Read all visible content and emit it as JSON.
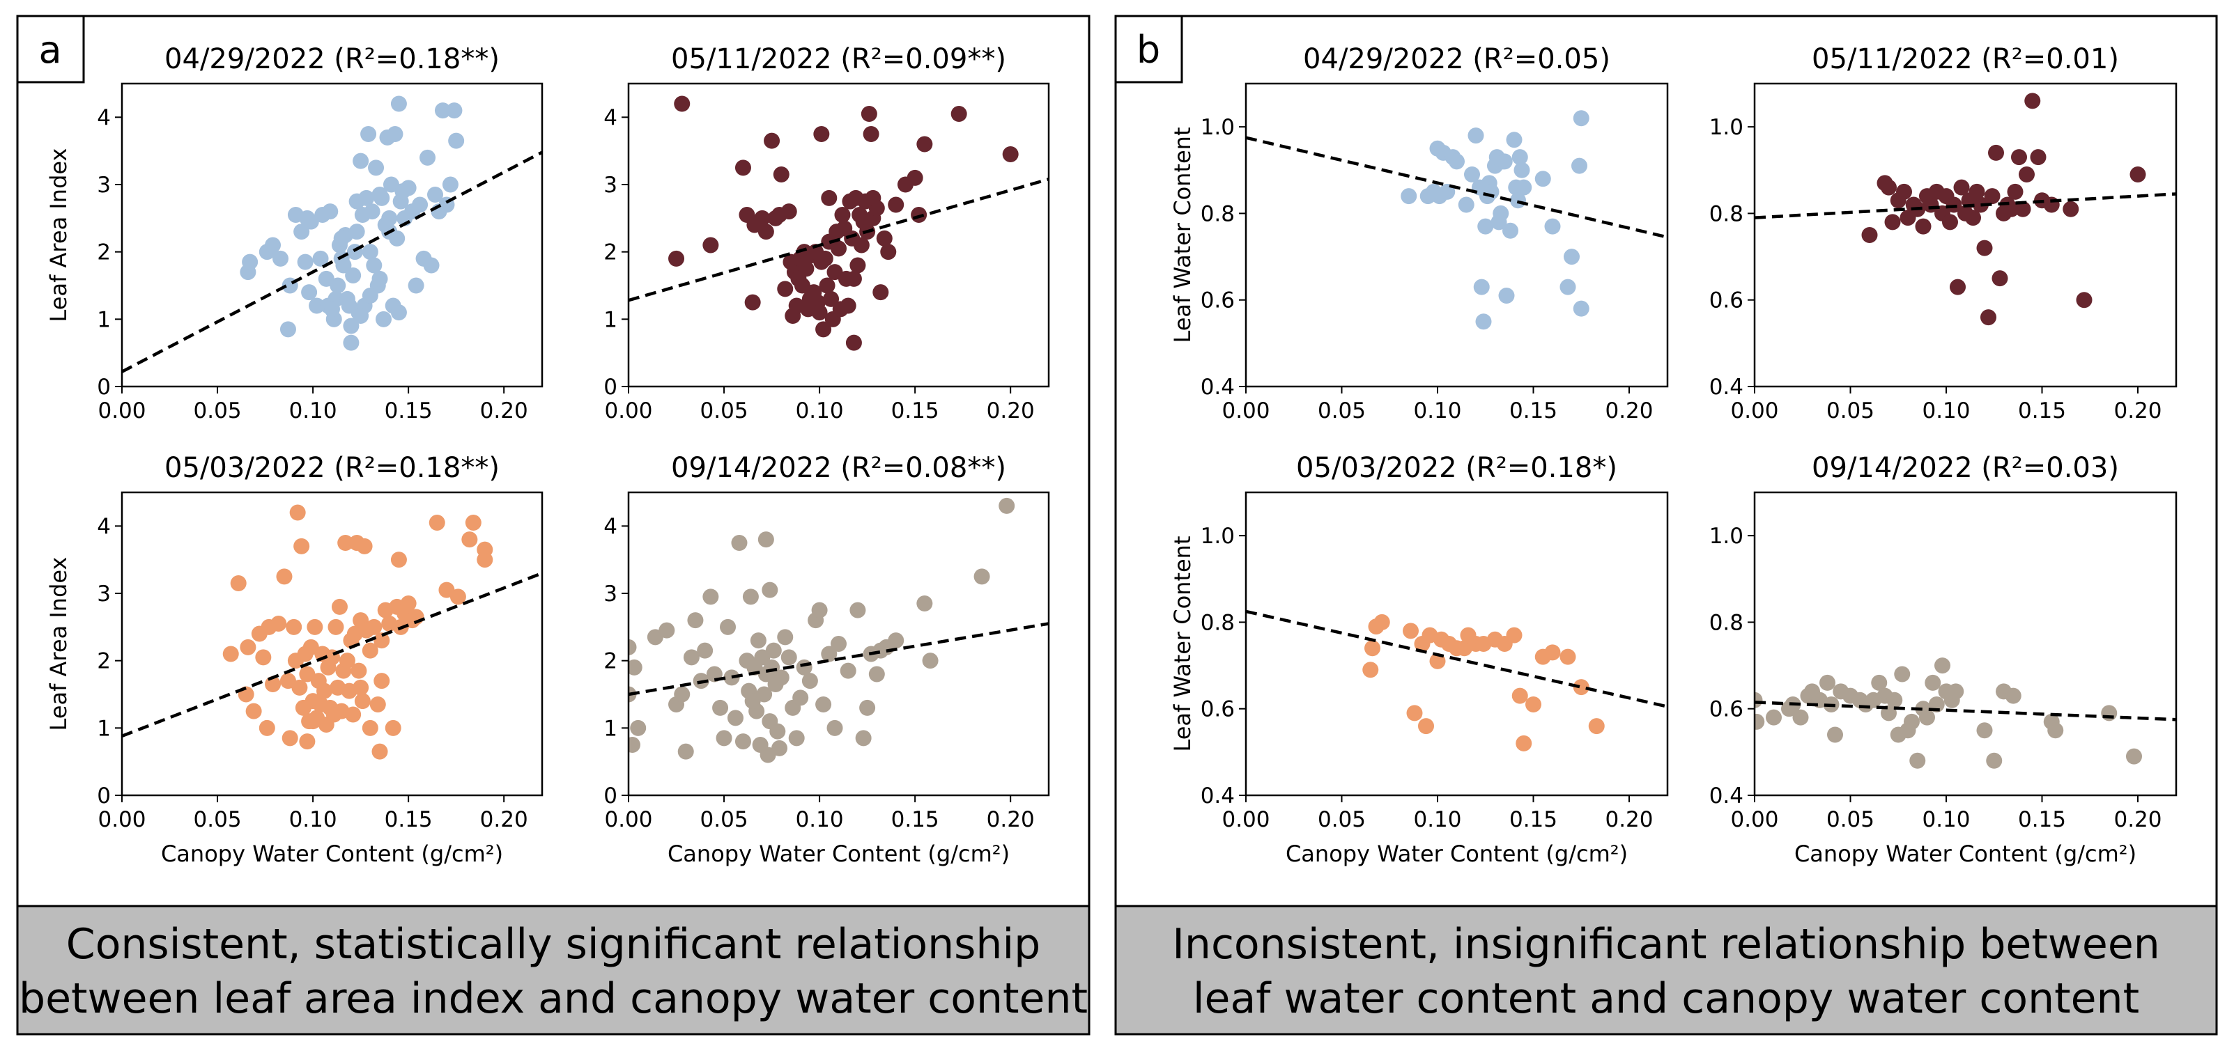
{
  "panels": [
    {
      "tag": "a",
      "caption_lines": [
        "Consistent, statistically significant relationship",
        "between leaf area index and canopy water content"
      ]
    },
    {
      "tag": "b",
      "caption_lines": [
        "Inconsistent, insignificant relationship between",
        "leaf water content and canopy water content"
      ]
    }
  ],
  "chart_data": [
    {
      "type": "scatter",
      "panel": "a",
      "title": "04/29/2022 (R²=0.18**)",
      "xlabel": "",
      "ylabel": "Leaf Area Index",
      "xlim": [
        0,
        0.22
      ],
      "ylim": [
        0,
        4.5
      ],
      "xticks": [
        "0.00",
        "0.05",
        "0.10",
        "0.15",
        "0.20"
      ],
      "yticks": [
        "0",
        "1",
        "2",
        "3",
        "4"
      ],
      "color": "#a3bfdc",
      "fit_line": {
        "x": [
          0,
          0.22
        ],
        "y": [
          0.22,
          3.48
        ]
      },
      "x": [
        0.066,
        0.067,
        0.076,
        0.079,
        0.083,
        0.087,
        0.088,
        0.091,
        0.094,
        0.096,
        0.097,
        0.098,
        0.099,
        0.102,
        0.104,
        0.105,
        0.107,
        0.108,
        0.109,
        0.111,
        0.112,
        0.113,
        0.114,
        0.115,
        0.116,
        0.117,
        0.118,
        0.119,
        0.12,
        0.121,
        0.122,
        0.123,
        0.123,
        0.124,
        0.125,
        0.126,
        0.127,
        0.128,
        0.129,
        0.13,
        0.131,
        0.132,
        0.133,
        0.134,
        0.135,
        0.136,
        0.137,
        0.138,
        0.139,
        0.14,
        0.141,
        0.142,
        0.143,
        0.144,
        0.145,
        0.146,
        0.147,
        0.148,
        0.15,
        0.152,
        0.154,
        0.156,
        0.158,
        0.16,
        0.162,
        0.164,
        0.166,
        0.168,
        0.17,
        0.172,
        0.174,
        0.175,
        0.12,
        0.125,
        0.13,
        0.135,
        0.14,
        0.145,
        0.11,
        0.115
      ],
      "y": [
        1.7,
        1.85,
        2.0,
        2.1,
        1.9,
        0.85,
        1.5,
        2.55,
        2.3,
        1.85,
        2.5,
        1.4,
        2.45,
        1.2,
        1.9,
        2.55,
        1.6,
        1.2,
        2.6,
        1.0,
        1.3,
        1.5,
        2.1,
        1.9,
        1.8,
        2.25,
        1.3,
        1.2,
        0.9,
        1.65,
        2.0,
        2.75,
        2.3,
        1.1,
        3.35,
        2.55,
        1.2,
        2.8,
        3.75,
        2.0,
        2.6,
        1.8,
        3.25,
        1.5,
        2.85,
        2.8,
        1.0,
        2.4,
        3.7,
        2.5,
        3.0,
        1.2,
        3.75,
        2.2,
        4.2,
        2.75,
        2.9,
        2.5,
        2.95,
        2.6,
        1.5,
        2.7,
        1.9,
        3.4,
        1.8,
        2.85,
        2.6,
        4.1,
        2.7,
        3.0,
        4.1,
        3.65,
        0.65,
        1.05,
        1.35,
        1.6,
        2.3,
        1.1,
        1.15,
        2.2
      ]
    },
    {
      "type": "scatter",
      "panel": "a",
      "title": "05/11/2022 (R²=0.09**)",
      "xlabel": "",
      "ylabel": "",
      "xlim": [
        0,
        0.22
      ],
      "ylim": [
        0,
        4.5
      ],
      "xticks": [
        "0.00",
        "0.05",
        "0.10",
        "0.15",
        "0.20"
      ],
      "yticks": [
        "0",
        "1",
        "2",
        "3",
        "4"
      ],
      "color": "#66262e",
      "fit_line": {
        "x": [
          0,
          0.22
        ],
        "y": [
          1.28,
          3.08
        ]
      },
      "x": [
        0.028,
        0.025,
        0.043,
        0.06,
        0.062,
        0.065,
        0.066,
        0.07,
        0.072,
        0.075,
        0.077,
        0.079,
        0.08,
        0.082,
        0.084,
        0.085,
        0.086,
        0.087,
        0.088,
        0.089,
        0.09,
        0.091,
        0.092,
        0.093,
        0.094,
        0.095,
        0.096,
        0.097,
        0.098,
        0.099,
        0.1,
        0.101,
        0.102,
        0.103,
        0.104,
        0.105,
        0.106,
        0.107,
        0.108,
        0.109,
        0.11,
        0.111,
        0.112,
        0.113,
        0.114,
        0.115,
        0.116,
        0.117,
        0.118,
        0.119,
        0.12,
        0.121,
        0.122,
        0.123,
        0.124,
        0.125,
        0.126,
        0.127,
        0.128,
        0.13,
        0.132,
        0.134,
        0.136,
        0.14,
        0.145,
        0.15,
        0.152,
        0.155,
        0.173,
        0.2,
        0.101,
        0.105,
        0.128,
        0.118
      ],
      "y": [
        4.2,
        1.9,
        2.1,
        3.25,
        2.55,
        1.25,
        2.4,
        2.5,
        2.3,
        3.65,
        2.5,
        2.55,
        3.15,
        1.45,
        2.6,
        1.85,
        1.05,
        1.7,
        1.2,
        1.6,
        1.9,
        1.5,
        2.0,
        1.75,
        1.15,
        1.3,
        1.95,
        1.4,
        2.0,
        1.25,
        1.1,
        3.75,
        0.85,
        1.9,
        1.5,
        2.8,
        1.3,
        1.0,
        1.7,
        2.3,
        2.05,
        1.15,
        2.55,
        2.35,
        1.6,
        1.2,
        2.75,
        2.2,
        0.65,
        2.8,
        1.8,
        2.55,
        2.1,
        2.45,
        2.75,
        2.3,
        4.05,
        3.75,
        2.5,
        2.65,
        1.4,
        2.2,
        2.0,
        2.7,
        3.0,
        3.1,
        2.55,
        3.6,
        4.05,
        3.45,
        1.85,
        2.15,
        2.8,
        1.6
      ]
    },
    {
      "type": "scatter",
      "panel": "a",
      "title": "05/03/2022 (R²=0.18**)",
      "xlabel": "Canopy Water Content (g/cm²)",
      "ylabel": "Leaf Area Index",
      "xlim": [
        0,
        0.22
      ],
      "ylim": [
        0,
        4.5
      ],
      "xticks": [
        "0.00",
        "0.05",
        "0.10",
        "0.15",
        "0.20"
      ],
      "yticks": [
        "0",
        "1",
        "2",
        "3",
        "4"
      ],
      "color": "#ee9b6a",
      "fit_line": {
        "x": [
          0,
          0.22
        ],
        "y": [
          0.88,
          3.3
        ]
      },
      "x": [
        0.057,
        0.061,
        0.065,
        0.066,
        0.069,
        0.072,
        0.074,
        0.076,
        0.077,
        0.079,
        0.082,
        0.085,
        0.087,
        0.088,
        0.09,
        0.091,
        0.092,
        0.093,
        0.094,
        0.095,
        0.096,
        0.097,
        0.098,
        0.099,
        0.1,
        0.101,
        0.102,
        0.103,
        0.104,
        0.105,
        0.106,
        0.107,
        0.108,
        0.109,
        0.11,
        0.111,
        0.112,
        0.113,
        0.114,
        0.115,
        0.116,
        0.117,
        0.118,
        0.119,
        0.12,
        0.121,
        0.122,
        0.123,
        0.124,
        0.125,
        0.126,
        0.127,
        0.128,
        0.13,
        0.132,
        0.134,
        0.135,
        0.136,
        0.138,
        0.14,
        0.142,
        0.144,
        0.145,
        0.146,
        0.148,
        0.15,
        0.152,
        0.154,
        0.165,
        0.17,
        0.176,
        0.182,
        0.184,
        0.19,
        0.19,
        0.097,
        0.1,
        0.125,
        0.13,
        0.136
      ],
      "y": [
        2.1,
        3.15,
        1.5,
        2.2,
        1.25,
        2.4,
        2.05,
        1.0,
        2.5,
        1.65,
        2.55,
        3.25,
        1.7,
        0.85,
        2.5,
        2.0,
        4.2,
        1.6,
        3.7,
        1.3,
        2.1,
        1.8,
        1.1,
        2.2,
        1.4,
        2.5,
        1.15,
        1.7,
        1.35,
        2.1,
        1.55,
        1.05,
        1.9,
        1.3,
        2.05,
        1.2,
        2.5,
        1.6,
        2.8,
        1.25,
        1.85,
        3.75,
        2.0,
        1.55,
        2.3,
        1.2,
        2.4,
        3.75,
        1.85,
        2.6,
        1.4,
        3.7,
        2.45,
        2.15,
        2.5,
        1.35,
        0.65,
        2.3,
        2.75,
        2.55,
        1.0,
        2.8,
        3.5,
        2.5,
        2.7,
        2.85,
        2.6,
        2.65,
        4.05,
        3.05,
        2.95,
        3.8,
        4.05,
        3.65,
        3.5,
        0.8,
        1.1,
        1.6,
        1.0,
        1.7
      ]
    },
    {
      "type": "scatter",
      "panel": "a",
      "title": "09/14/2022 (R²=0.08**)",
      "xlabel": "Canopy Water Content (g/cm²)",
      "ylabel": "",
      "xlim": [
        0,
        0.22
      ],
      "ylim": [
        0,
        4.5
      ],
      "xticks": [
        "0.00",
        "0.05",
        "0.10",
        "0.15",
        "0.20"
      ],
      "yticks": [
        "0",
        "1",
        "2",
        "3",
        "4"
      ],
      "color": "#ada193",
      "fit_line": {
        "x": [
          0,
          0.22
        ],
        "y": [
          1.5,
          2.55
        ]
      },
      "x": [
        0.0,
        0.0,
        0.002,
        0.003,
        0.005,
        0.014,
        0.02,
        0.025,
        0.028,
        0.03,
        0.033,
        0.035,
        0.038,
        0.04,
        0.043,
        0.045,
        0.048,
        0.05,
        0.052,
        0.054,
        0.056,
        0.058,
        0.06,
        0.062,
        0.063,
        0.064,
        0.066,
        0.067,
        0.068,
        0.069,
        0.07,
        0.071,
        0.072,
        0.073,
        0.074,
        0.075,
        0.076,
        0.077,
        0.078,
        0.079,
        0.08,
        0.082,
        0.084,
        0.086,
        0.088,
        0.09,
        0.092,
        0.095,
        0.098,
        0.1,
        0.102,
        0.105,
        0.108,
        0.11,
        0.115,
        0.12,
        0.123,
        0.125,
        0.127,
        0.13,
        0.132,
        0.135,
        0.14,
        0.155,
        0.158,
        0.185,
        0.198,
        0.072,
        0.074,
        0.065
      ],
      "y": [
        2.2,
        1.5,
        0.75,
        1.9,
        1.0,
        2.35,
        2.45,
        1.35,
        1.5,
        0.65,
        2.05,
        2.6,
        1.7,
        2.15,
        2.95,
        1.8,
        1.3,
        0.85,
        2.5,
        1.75,
        1.15,
        3.75,
        0.8,
        2.0,
        1.55,
        2.95,
        1.9,
        1.25,
        2.3,
        0.75,
        2.05,
        1.5,
        3.8,
        0.6,
        3.05,
        1.9,
        2.15,
        1.65,
        0.95,
        0.7,
        1.75,
        2.35,
        2.05,
        1.3,
        0.85,
        1.45,
        1.9,
        1.7,
        2.6,
        2.75,
        1.35,
        2.1,
        1.0,
        2.25,
        1.85,
        2.75,
        0.85,
        1.3,
        2.1,
        1.8,
        2.15,
        2.2,
        2.3,
        2.85,
        2.0,
        3.25,
        4.3,
        1.8,
        1.1,
        1.4
      ]
    },
    {
      "type": "scatter",
      "panel": "b",
      "title": "04/29/2022 (R²=0.05)",
      "xlabel": "",
      "ylabel": "Leaf Water Content",
      "xlim": [
        0,
        0.22
      ],
      "ylim": [
        0.4,
        1.1
      ],
      "xticks": [
        "0.00",
        "0.05",
        "0.10",
        "0.15",
        "0.20"
      ],
      "yticks": [
        "0.4",
        "0.6",
        "0.8",
        "1.0"
      ],
      "color": "#a3bfdc",
      "fit_line": {
        "x": [
          0,
          0.22
        ],
        "y": [
          0.975,
          0.745
        ]
      },
      "x": [
        0.085,
        0.095,
        0.098,
        0.1,
        0.101,
        0.103,
        0.105,
        0.108,
        0.11,
        0.115,
        0.118,
        0.12,
        0.122,
        0.123,
        0.124,
        0.125,
        0.126,
        0.127,
        0.128,
        0.13,
        0.131,
        0.132,
        0.133,
        0.134,
        0.135,
        0.136,
        0.138,
        0.14,
        0.141,
        0.142,
        0.143,
        0.144,
        0.145,
        0.155,
        0.16,
        0.168,
        0.17,
        0.174,
        0.175,
        0.175
      ],
      "y": [
        0.84,
        0.84,
        0.85,
        0.95,
        0.84,
        0.94,
        0.85,
        0.93,
        0.92,
        0.82,
        0.89,
        0.98,
        0.86,
        0.63,
        0.55,
        0.77,
        0.84,
        0.87,
        0.85,
        0.91,
        0.93,
        0.78,
        0.8,
        0.92,
        0.92,
        0.61,
        0.76,
        0.97,
        0.86,
        0.83,
        0.93,
        0.9,
        0.86,
        0.88,
        0.77,
        0.63,
        0.7,
        0.91,
        1.02,
        0.58
      ]
    },
    {
      "type": "scatter",
      "panel": "b",
      "title": "05/11/2022 (R²=0.01)",
      "xlabel": "",
      "ylabel": "",
      "xlim": [
        0,
        0.22
      ],
      "ylim": [
        0.4,
        1.1
      ],
      "xticks": [
        "0.00",
        "0.05",
        "0.10",
        "0.15",
        "0.20"
      ],
      "yticks": [
        "0.4",
        "0.6",
        "0.8",
        "1.0"
      ],
      "color": "#66262e",
      "fit_line": {
        "x": [
          0,
          0.22
        ],
        "y": [
          0.79,
          0.845
        ]
      },
      "x": [
        0.06,
        0.068,
        0.07,
        0.072,
        0.075,
        0.078,
        0.08,
        0.083,
        0.085,
        0.088,
        0.09,
        0.092,
        0.095,
        0.098,
        0.1,
        0.102,
        0.104,
        0.106,
        0.108,
        0.11,
        0.112,
        0.114,
        0.116,
        0.118,
        0.12,
        0.122,
        0.124,
        0.126,
        0.128,
        0.13,
        0.132,
        0.134,
        0.136,
        0.138,
        0.14,
        0.142,
        0.145,
        0.148,
        0.15,
        0.155,
        0.165,
        0.172,
        0.2
      ],
      "y": [
        0.75,
        0.87,
        0.86,
        0.78,
        0.83,
        0.85,
        0.79,
        0.82,
        0.81,
        0.77,
        0.84,
        0.82,
        0.85,
        0.8,
        0.84,
        0.78,
        0.82,
        0.63,
        0.86,
        0.8,
        0.83,
        0.79,
        0.85,
        0.82,
        0.72,
        0.56,
        0.84,
        0.94,
        0.65,
        0.8,
        0.82,
        0.81,
        0.85,
        0.93,
        0.81,
        0.89,
        1.06,
        0.93,
        0.83,
        0.82,
        0.81,
        0.6,
        0.89
      ]
    },
    {
      "type": "scatter",
      "panel": "b",
      "title": "05/03/2022 (R²=0.18*)",
      "xlabel": "Canopy Water Content (g/cm²)",
      "ylabel": "Leaf Water Content",
      "xlim": [
        0,
        0.22
      ],
      "ylim": [
        0.4,
        1.1
      ],
      "xticks": [
        "0.00",
        "0.05",
        "0.10",
        "0.15",
        "0.20"
      ],
      "yticks": [
        "0.4",
        "0.6",
        "0.8",
        "1.0"
      ],
      "color": "#ee9b6a",
      "fit_line": {
        "x": [
          0,
          0.22
        ],
        "y": [
          0.825,
          0.605
        ]
      },
      "x": [
        0.065,
        0.066,
        0.068,
        0.071,
        0.086,
        0.088,
        0.092,
        0.094,
        0.096,
        0.1,
        0.102,
        0.106,
        0.11,
        0.114,
        0.116,
        0.12,
        0.124,
        0.13,
        0.135,
        0.14,
        0.143,
        0.145,
        0.15,
        0.155,
        0.16,
        0.168,
        0.175,
        0.183
      ],
      "y": [
        0.69,
        0.74,
        0.79,
        0.8,
        0.78,
        0.59,
        0.75,
        0.56,
        0.77,
        0.71,
        0.76,
        0.75,
        0.74,
        0.74,
        0.77,
        0.75,
        0.75,
        0.76,
        0.75,
        0.77,
        0.63,
        0.52,
        0.61,
        0.72,
        0.73,
        0.72,
        0.65,
        0.56
      ]
    },
    {
      "type": "scatter",
      "panel": "b",
      "title": "09/14/2022 (R²=0.03)",
      "xlabel": "Canopy Water Content (g/cm²)",
      "ylabel": "",
      "xlim": [
        0,
        0.22
      ],
      "ylim": [
        0.4,
        1.1
      ],
      "xticks": [
        "0.00",
        "0.05",
        "0.10",
        "0.15",
        "0.20"
      ],
      "yticks": [
        "0.4",
        "0.6",
        "0.8",
        "1.0"
      ],
      "color": "#ada193",
      "fit_line": {
        "x": [
          0,
          0.22
        ],
        "y": [
          0.615,
          0.575
        ]
      },
      "x": [
        0.0,
        0.001,
        0.01,
        0.018,
        0.02,
        0.024,
        0.028,
        0.03,
        0.034,
        0.038,
        0.04,
        0.042,
        0.045,
        0.05,
        0.055,
        0.058,
        0.062,
        0.065,
        0.068,
        0.07,
        0.073,
        0.075,
        0.077,
        0.08,
        0.082,
        0.085,
        0.088,
        0.09,
        0.093,
        0.095,
        0.098,
        0.1,
        0.103,
        0.105,
        0.12,
        0.125,
        0.13,
        0.135,
        0.155,
        0.157,
        0.185,
        0.198
      ],
      "y": [
        0.62,
        0.57,
        0.58,
        0.6,
        0.61,
        0.58,
        0.63,
        0.64,
        0.62,
        0.66,
        0.61,
        0.54,
        0.64,
        0.63,
        0.62,
        0.61,
        0.62,
        0.66,
        0.63,
        0.59,
        0.62,
        0.54,
        0.68,
        0.55,
        0.57,
        0.48,
        0.6,
        0.58,
        0.66,
        0.61,
        0.7,
        0.64,
        0.62,
        0.64,
        0.55,
        0.48,
        0.64,
        0.63,
        0.57,
        0.55,
        0.59,
        0.49
      ]
    }
  ]
}
